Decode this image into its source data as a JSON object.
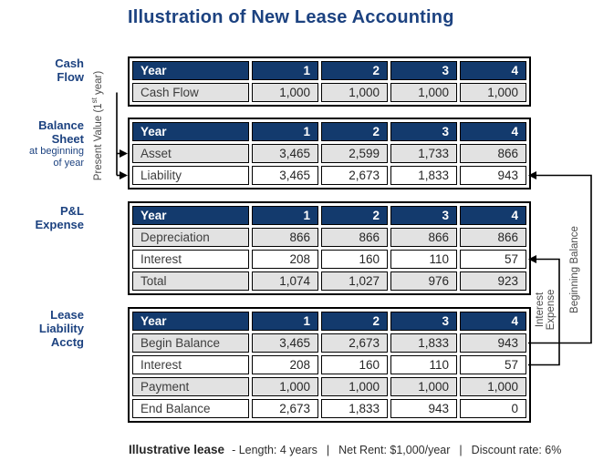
{
  "title": "Illustration of New Lease Accounting",
  "columns": [
    "1",
    "2",
    "3",
    "4"
  ],
  "sections": [
    {
      "id": "cash_flow",
      "label_lines": [
        "Cash",
        "Flow"
      ],
      "sublabel_lines": [],
      "table": {
        "header": "Year",
        "rows": [
          {
            "label": "Cash Flow",
            "values": [
              "1,000",
              "1,000",
              "1,000",
              "1,000"
            ]
          }
        ]
      }
    },
    {
      "id": "balance_sheet",
      "label_lines": [
        "Balance",
        "Sheet"
      ],
      "sublabel_lines": [
        "at beginning",
        "of year"
      ],
      "table": {
        "header": "Year",
        "rows": [
          {
            "label": "Asset",
            "values": [
              "3,465",
              "2,599",
              "1,733",
              "866"
            ]
          },
          {
            "label": "Liability",
            "values": [
              "3,465",
              "2,673",
              "1,833",
              "943"
            ]
          }
        ]
      }
    },
    {
      "id": "pl_expense",
      "label_lines": [
        "P&L",
        "Expense"
      ],
      "sublabel_lines": [],
      "table": {
        "header": "Year",
        "rows": [
          {
            "label": "Depreciation",
            "values": [
              "866",
              "866",
              "866",
              "866"
            ]
          },
          {
            "label": "Interest",
            "values": [
              "208",
              "160",
              "110",
              "57"
            ]
          },
          {
            "label": "Total",
            "values": [
              "1,074",
              "1,027",
              "976",
              "923"
            ]
          }
        ]
      }
    },
    {
      "id": "lease_liability_acctg",
      "label_lines": [
        "Lease",
        "Liability",
        "Acctg"
      ],
      "sublabel_lines": [],
      "table": {
        "header": "Year",
        "rows": [
          {
            "label": "Begin Balance",
            "values": [
              "3,465",
              "2,673",
              "1,833",
              "943"
            ]
          },
          {
            "label": "Interest",
            "values": [
              "208",
              "160",
              "110",
              "57"
            ]
          },
          {
            "label": "Payment",
            "values": [
              "1,000",
              "1,000",
              "1,000",
              "1,000"
            ]
          },
          {
            "label": "End Balance",
            "values": [
              "2,673",
              "1,833",
              "943",
              "0"
            ]
          }
        ]
      }
    }
  ],
  "annotations": {
    "present_value": {
      "pre": "Present Value (1",
      "sup": "st",
      "post": " year)"
    },
    "beginning_balance": "Beginning Balance",
    "interest_expense": {
      "line1": "Interest",
      "line2": "Expense"
    }
  },
  "footer": {
    "title": "Illustrative lease",
    "items": [
      "- Length: 4 years",
      "Net Rent: $1,000/year",
      "Discount rate: 6%"
    ],
    "separator": "|"
  },
  "colors": {
    "header_navy": "#133a6d",
    "title_navy": "#1c4280",
    "row_gray": "#e2e2e2",
    "connector_black": "#000000",
    "annotation_gray": "#4b4b4b"
  }
}
